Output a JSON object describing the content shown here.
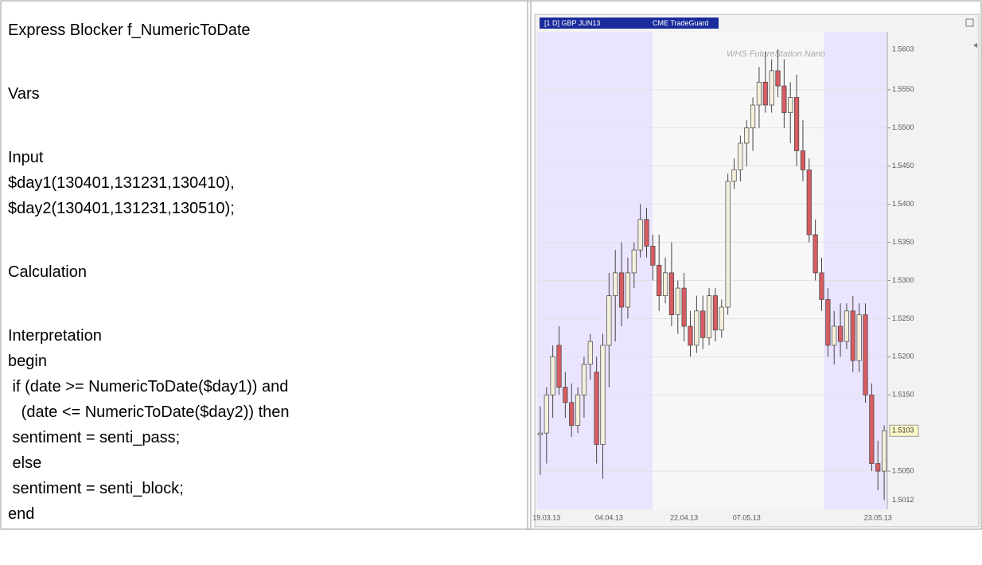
{
  "document": {
    "code_blocks": [
      [
        "Express Blocker f_NumericToDate"
      ],
      [
        "Vars"
      ],
      [
        "Input",
        "$day1(130401,131231,130410),",
        "$day2(130401,131231,130510);"
      ],
      [
        "Calculation"
      ],
      [
        "Interpretation",
        "begin",
        " if (date >= NumericToDate($day1)) and",
        "   (date <= NumericToDate($day2)) then",
        " sentiment = senti_pass;",
        " else",
        " sentiment = senti_block;",
        "end"
      ]
    ]
  },
  "chart_data": {
    "type": "candlestick",
    "title": "[1 D] GBP JUN13",
    "subtitle": "CME TradeGuard",
    "watermark": "WHS FutureStation Nano",
    "categories": [
      null,
      "19.03.13",
      null,
      null,
      null,
      null,
      null,
      null,
      null,
      null,
      null,
      "04.04.13",
      null,
      null,
      null,
      null,
      null,
      null,
      null,
      null,
      null,
      null,
      null,
      "22.04.13",
      null,
      null,
      null,
      null,
      null,
      null,
      null,
      null,
      null,
      "07.05.13",
      null,
      null,
      null,
      null,
      null,
      null,
      null,
      null,
      null,
      null,
      null,
      null,
      null,
      null,
      null,
      null,
      null,
      null,
      null,
      null,
      "23.05.13",
      null
    ],
    "open": [
      1.5098,
      1.51,
      1.515,
      1.5215,
      1.516,
      1.514,
      1.511,
      1.515,
      1.519,
      1.518,
      1.5085,
      1.5215,
      1.528,
      1.531,
      1.5265,
      1.531,
      1.534,
      1.538,
      1.5345,
      1.532,
      1.528,
      1.531,
      1.5255,
      1.529,
      1.524,
      1.5215,
      1.526,
      1.5225,
      1.528,
      1.5235,
      1.5265,
      1.543,
      1.5445,
      1.548,
      1.55,
      1.553,
      1.556,
      1.553,
      1.5575,
      1.5555,
      1.552,
      1.554,
      1.547,
      1.5445,
      1.536,
      1.531,
      1.5275,
      1.5215,
      1.524,
      1.522,
      1.526,
      1.5195,
      1.5255,
      1.515,
      1.506,
      1.505
    ],
    "high": [
      1.5135,
      1.516,
      1.5215,
      1.524,
      1.518,
      1.5165,
      1.516,
      1.52,
      1.523,
      1.52,
      1.523,
      1.531,
      1.534,
      1.535,
      1.533,
      1.535,
      1.54,
      1.5395,
      1.536,
      1.536,
      1.533,
      1.535,
      1.53,
      1.531,
      1.526,
      1.528,
      1.528,
      1.529,
      1.529,
      1.5275,
      1.544,
      1.546,
      1.549,
      1.551,
      1.554,
      1.558,
      1.56,
      1.559,
      1.5603,
      1.559,
      1.556,
      1.557,
      1.551,
      1.546,
      1.538,
      1.533,
      1.529,
      1.526,
      1.527,
      1.527,
      1.528,
      1.527,
      1.527,
      1.5165,
      1.509,
      1.511
    ],
    "low": [
      1.5045,
      1.506,
      1.512,
      1.515,
      1.512,
      1.5095,
      1.51,
      1.512,
      1.517,
      1.506,
      1.504,
      1.516,
      1.522,
      1.524,
      1.525,
      1.529,
      1.533,
      1.533,
      1.53,
      1.526,
      1.527,
      1.524,
      1.523,
      1.522,
      1.52,
      1.5205,
      1.521,
      1.5215,
      1.522,
      1.5225,
      1.5255,
      1.542,
      1.543,
      1.545,
      1.547,
      1.55,
      1.552,
      1.552,
      1.554,
      1.55,
      1.548,
      1.545,
      1.543,
      1.535,
      1.53,
      1.526,
      1.52,
      1.519,
      1.52,
      1.521,
      1.518,
      1.518,
      1.514,
      1.505,
      1.5025,
      1.5012
    ],
    "close": [
      1.51,
      1.515,
      1.52,
      1.516,
      1.514,
      1.511,
      1.515,
      1.519,
      1.522,
      1.5085,
      1.5215,
      1.528,
      1.531,
      1.5265,
      1.531,
      1.534,
      1.538,
      1.5345,
      1.532,
      1.528,
      1.531,
      1.5255,
      1.529,
      1.524,
      1.5215,
      1.526,
      1.5225,
      1.528,
      1.5235,
      1.5265,
      1.543,
      1.5445,
      1.548,
      1.55,
      1.553,
      1.556,
      1.553,
      1.5575,
      1.5555,
      1.552,
      1.554,
      1.547,
      1.5445,
      1.536,
      1.531,
      1.5275,
      1.5215,
      1.524,
      1.522,
      1.526,
      1.5195,
      1.5255,
      1.515,
      1.506,
      1.505,
      1.5103
    ],
    "up_color": "#f4f0dc",
    "down_color": "#d65c62",
    "ylim": [
      1.5,
      1.5626
    ],
    "yticks": [
      {
        "value": 1.505,
        "label": "1.5050"
      },
      {
        "value": 1.515,
        "label": "1.5150"
      },
      {
        "value": 1.52,
        "label": "1.5200"
      },
      {
        "value": 1.525,
        "label": "1.5250"
      },
      {
        "value": 1.53,
        "label": "1.5300"
      },
      {
        "value": 1.535,
        "label": "1.5350"
      },
      {
        "value": 1.54,
        "label": "1.5400"
      },
      {
        "value": 1.545,
        "label": "1.5450"
      },
      {
        "value": 1.55,
        "label": "1.5500"
      },
      {
        "value": 1.555,
        "label": "1.5550"
      }
    ],
    "high_label": 1.5603,
    "low_label": 1.5012,
    "last_price": 1.5103,
    "grid": true
  }
}
